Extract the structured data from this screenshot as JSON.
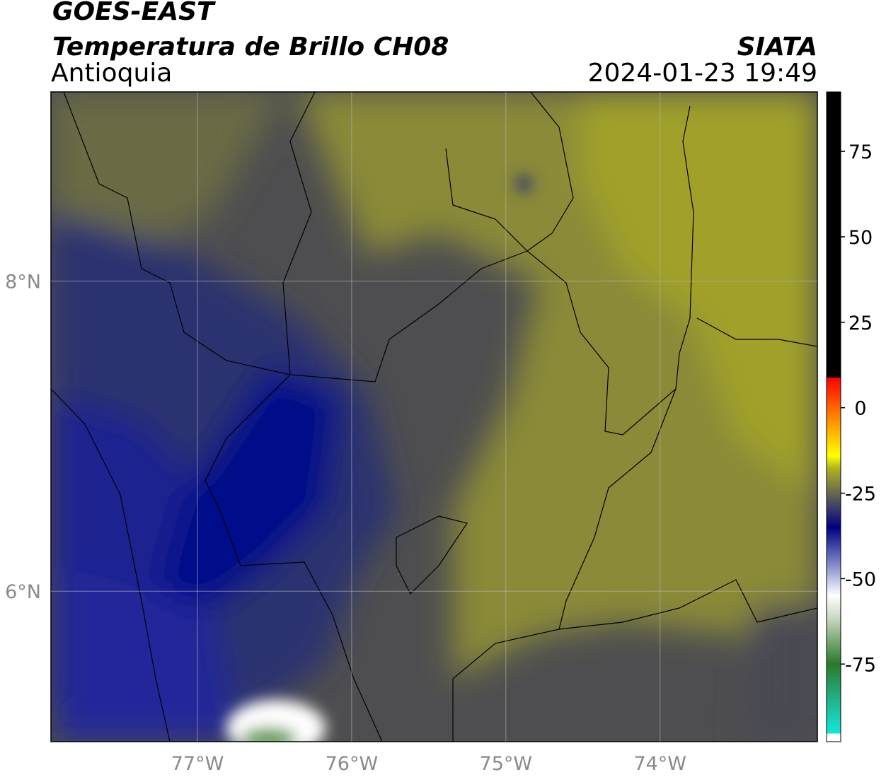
{
  "title": "GOES-EAST",
  "subtitle": "Temperatura de Brillo CH08",
  "region": "Antioquia",
  "source": "SIATA",
  "datetime": "2024-01-23 19:49",
  "map": {
    "xlim": [
      -77.95,
      -72.98
    ],
    "ylim": [
      5.03,
      9.22
    ],
    "xticks": [
      {
        "value": -77,
        "label": "77°W"
      },
      {
        "value": -76,
        "label": "76°W"
      },
      {
        "value": -75,
        "label": "75°W"
      },
      {
        "value": -74,
        "label": "74°W"
      }
    ],
    "yticks": [
      {
        "value": 8,
        "label": "8°N"
      },
      {
        "value": 6,
        "label": "6°N"
      }
    ],
    "grid": true
  },
  "colorbar": {
    "lim": [
      -97.7,
      92.4
    ],
    "ticks": [
      75,
      50,
      25,
      0,
      -25,
      -50,
      -75
    ]
  }
}
